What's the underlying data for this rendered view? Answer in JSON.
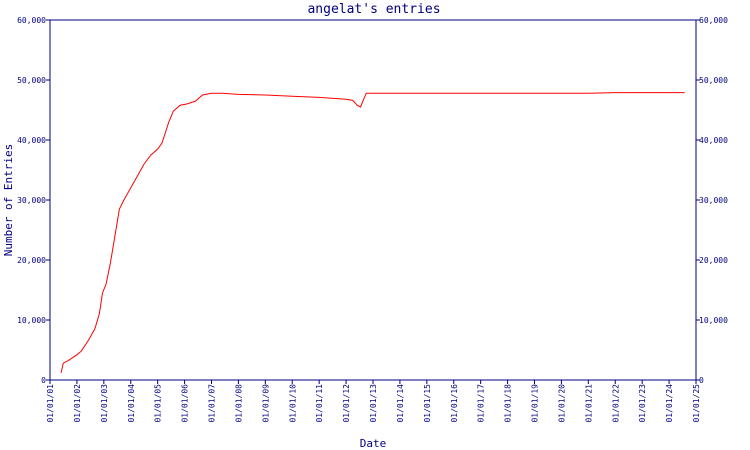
{
  "chart_data": {
    "type": "line",
    "title": "angelat's entries",
    "xlabel": "Date",
    "ylabel": "Number of Entries",
    "ylim": [
      0,
      60000
    ],
    "xlim": [
      "2001-01-01",
      "2025-01-01"
    ],
    "y_ticks": [
      "0",
      "10,000",
      "20,000",
      "30,000",
      "40,000",
      "50,000",
      "60,000"
    ],
    "x_ticks": [
      "01/01/01",
      "01/01/02",
      "01/01/03",
      "01/01/04",
      "01/01/05",
      "01/01/06",
      "01/01/07",
      "01/01/08",
      "01/01/09",
      "01/01/10",
      "01/01/11",
      "01/01/12",
      "01/01/13",
      "01/01/14",
      "01/01/15",
      "01/01/16",
      "01/01/17",
      "01/01/18",
      "01/01/19",
      "01/01/20",
      "01/01/21",
      "01/01/22",
      "01/01/23",
      "01/01/24",
      "01/01/25"
    ],
    "grid": false,
    "line_color": "#ff0000",
    "axis_color": "#000080",
    "series": [
      {
        "points": [
          [
            "2001-06-01",
            1200
          ],
          [
            "2001-07-01",
            2800
          ],
          [
            "2001-09-01",
            3200
          ],
          [
            "2002-01-01",
            4200
          ],
          [
            "2002-03-01",
            4800
          ],
          [
            "2002-06-01",
            6500
          ],
          [
            "2002-09-01",
            8500
          ],
          [
            "2002-11-01",
            11000
          ],
          [
            "2002-12-15",
            14500
          ],
          [
            "2003-02-01",
            16000
          ],
          [
            "2003-04-01",
            19500
          ],
          [
            "2003-06-01",
            24000
          ],
          [
            "2003-08-01",
            28500
          ],
          [
            "2003-10-01",
            30000
          ],
          [
            "2004-01-01",
            32000
          ],
          [
            "2004-04-01",
            34000
          ],
          [
            "2004-07-01",
            36000
          ],
          [
            "2004-10-01",
            37500
          ],
          [
            "2005-01-01",
            38500
          ],
          [
            "2005-03-01",
            39500
          ],
          [
            "2005-06-01",
            43000
          ],
          [
            "2005-08-01",
            44800
          ],
          [
            "2005-11-01",
            45800
          ],
          [
            "2006-02-01",
            46000
          ],
          [
            "2006-06-01",
            46500
          ],
          [
            "2006-09-01",
            47500
          ],
          [
            "2007-01-01",
            47800
          ],
          [
            "2007-06-01",
            47800
          ],
          [
            "2008-01-01",
            47600
          ],
          [
            "2009-01-01",
            47500
          ],
          [
            "2010-01-01",
            47300
          ],
          [
            "2011-01-01",
            47100
          ],
          [
            "2012-01-01",
            46800
          ],
          [
            "2012-04-01",
            46600
          ],
          [
            "2012-06-01",
            45800
          ],
          [
            "2012-07-15",
            45500
          ],
          [
            "2012-10-01",
            47800
          ],
          [
            "2013-01-01",
            47800
          ],
          [
            "2016-01-01",
            47800
          ],
          [
            "2020-01-01",
            47800
          ],
          [
            "2021-01-01",
            47800
          ],
          [
            "2022-01-01",
            47900
          ],
          [
            "2024-08-01",
            47900
          ]
        ]
      }
    ]
  }
}
